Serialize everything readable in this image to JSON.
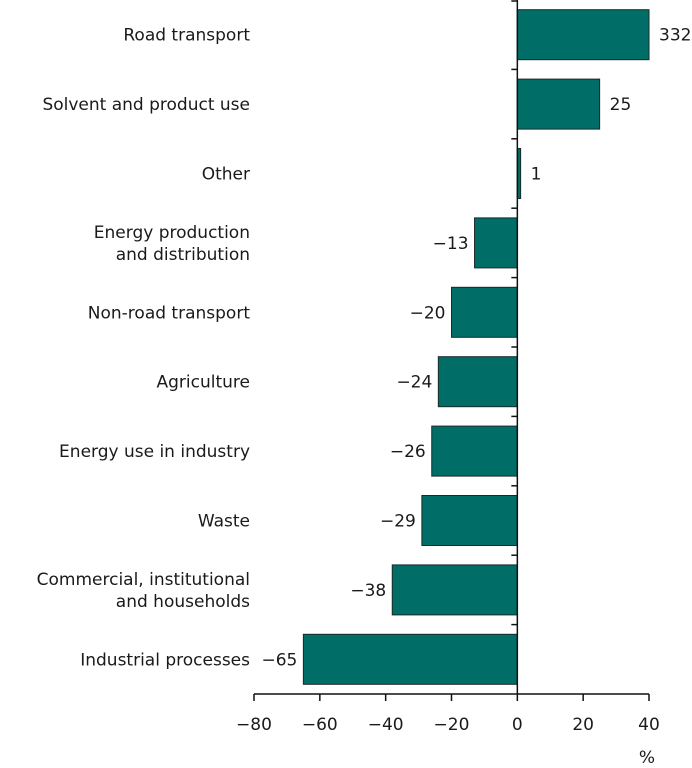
{
  "chart_data": {
    "type": "bar",
    "orientation": "horizontal",
    "title": "",
    "xlabel": "%",
    "ylabel": "",
    "xlim": [
      -80,
      40
    ],
    "xticks": [
      -80,
      -60,
      -40,
      -20,
      0,
      20,
      40
    ],
    "xtick_labels": [
      "−80",
      "−60",
      "−40",
      "−20",
      "0",
      "20",
      "40"
    ],
    "categories": [
      [
        "Road transport"
      ],
      [
        "Solvent and product use"
      ],
      [
        "Other"
      ],
      [
        "Energy production",
        "and distribution"
      ],
      [
        "Non-road transport"
      ],
      [
        "Agriculture"
      ],
      [
        "Energy use in industry"
      ],
      [
        "Waste"
      ],
      [
        "Commercial, institutional",
        "and households"
      ],
      [
        "Industrial processes"
      ]
    ],
    "values": [
      332,
      25,
      1,
      -13,
      -20,
      -24,
      -26,
      -29,
      -38,
      -65
    ],
    "value_labels": [
      "332",
      "25",
      "1",
      "−13",
      "−20",
      "−24",
      "−26",
      "−29",
      "−38",
      "−65"
    ],
    "note": "Road transport bar truncated at axis maximum",
    "grid": false,
    "bar_color": "#006d66",
    "bar_edge_color": "#1a2a28"
  }
}
